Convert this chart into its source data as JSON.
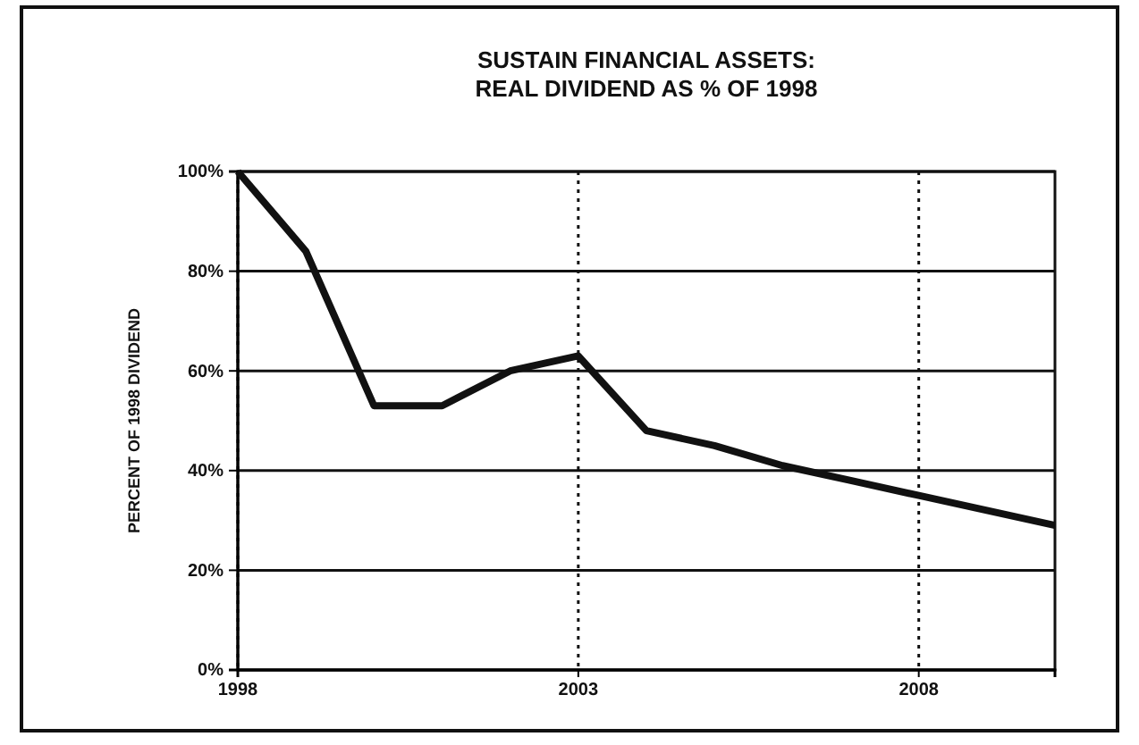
{
  "chart_data": {
    "type": "line",
    "title": "SUSTAIN FINANCIAL ASSETS:\nREAL DIVIDEND AS % OF 1998",
    "ylabel": "PERCENT OF 1998 DIVIDEND",
    "x": [
      1998,
      1999,
      2000,
      2001,
      2002,
      2003,
      2004,
      2005,
      2006,
      2007,
      2008,
      2009,
      2010
    ],
    "series": [
      {
        "color": "#111111",
        "values": [
          100,
          84,
          53,
          53,
          60,
          63,
          48,
          45,
          41,
          38,
          35,
          32,
          29
        ]
      }
    ],
    "xlim": [
      1998,
      2010
    ],
    "xticks": [
      1998,
      2003,
      2008
    ],
    "ylim": [
      0,
      100
    ],
    "yticks": [
      {
        "value": 0,
        "label": "0%"
      },
      {
        "value": 20,
        "label": "20%"
      },
      {
        "value": 40,
        "label": "40%"
      },
      {
        "value": 60,
        "label": "60%"
      },
      {
        "value": 80,
        "label": "80%"
      },
      {
        "value": 100,
        "label": "100%"
      }
    ],
    "grid": true,
    "line_style": "solid",
    "marker": "none"
  }
}
